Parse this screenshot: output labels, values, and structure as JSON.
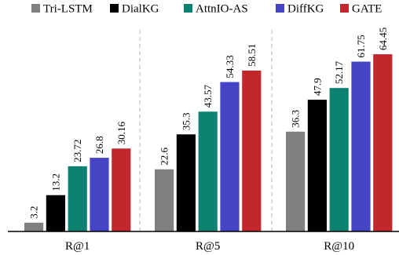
{
  "chart_data": {
    "type": "bar",
    "categories": [
      "R@1",
      "R@5",
      "R@10"
    ],
    "series": [
      {
        "name": "Tri-LSTM",
        "color": "#808080",
        "values": [
          3.2,
          22.6,
          36.3
        ],
        "labels": [
          "3.2",
          "22.6",
          "36.3"
        ]
      },
      {
        "name": "DialKG",
        "color": "#000000",
        "values": [
          13.2,
          35.3,
          47.9
        ],
        "labels": [
          "13.2",
          "35.3",
          "47.9"
        ]
      },
      {
        "name": "AttnIO-AS",
        "color": "#0e8270",
        "values": [
          23.72,
          43.57,
          52.17
        ],
        "labels": [
          "23.72",
          "43.57",
          "52.17"
        ]
      },
      {
        "name": "DiffKG",
        "color": "#4444c4",
        "values": [
          26.8,
          54.33,
          61.75
        ],
        "labels": [
          "26.8",
          "54.33",
          "61.75"
        ]
      },
      {
        "name": "GATE",
        "color": "#c1272d",
        "values": [
          30.16,
          58.51,
          64.45
        ],
        "labels": [
          "30.16",
          "58.51",
          "64.45"
        ]
      }
    ],
    "ylim": [
      0,
      70
    ],
    "legend_position": "top",
    "group_separators": "dashed"
  }
}
